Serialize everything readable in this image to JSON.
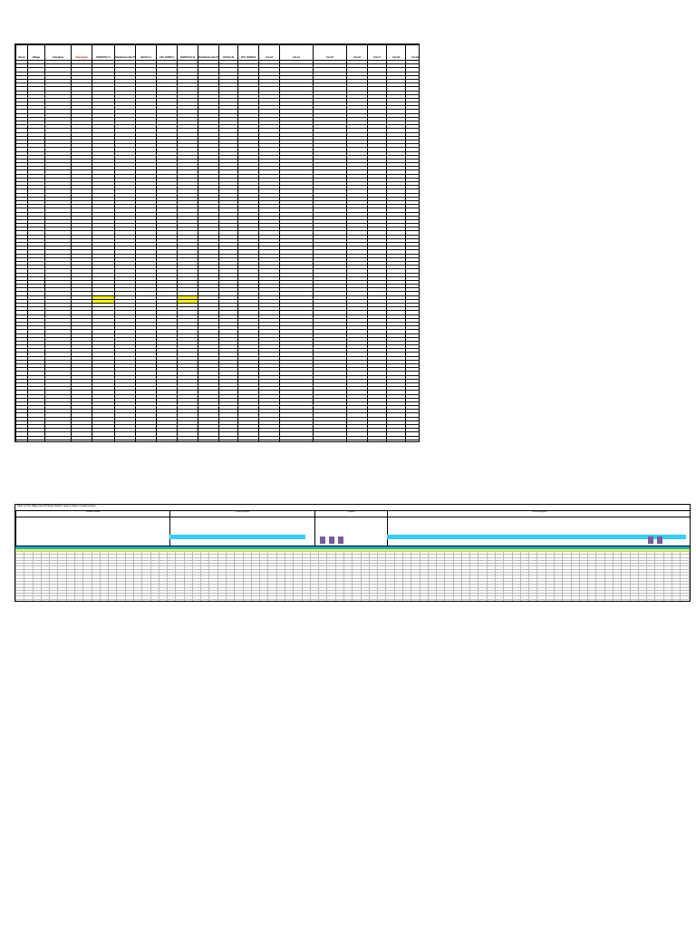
{
  "sheet1": {
    "columns": [
      "Block",
      "Village",
      "Gutstatus",
      "Panchayat",
      "OHSR Part A",
      "Distribution Net Part A",
      "HH Part A",
      "CFC OHSR A",
      "OHSR Part B",
      "Distribution Net Part B",
      "HH Part B",
      "CFC OHSR B",
      "Col-13",
      "Col-14",
      "Col-15",
      "Col-16",
      "Col-17",
      "Col-18",
      "Col-19"
    ],
    "red_columns": [
      3
    ],
    "rows": [
      [
        "Block",
        "",
        "",
        "",
        "",
        "",
        "",
        "",
        "",
        "",
        "",
        "",
        "",
        "",
        "",
        "",
        "",
        "",
        ""
      ]
    ]
  },
  "sheet2": {
    "title": "Table: Ay Proj. Village wise HH Target physical / target & Status of implementation",
    "bands": [
      "Schemes Details",
      "Physical progress",
      "Progress",
      "Financial progress"
    ],
    "rows": []
  }
}
